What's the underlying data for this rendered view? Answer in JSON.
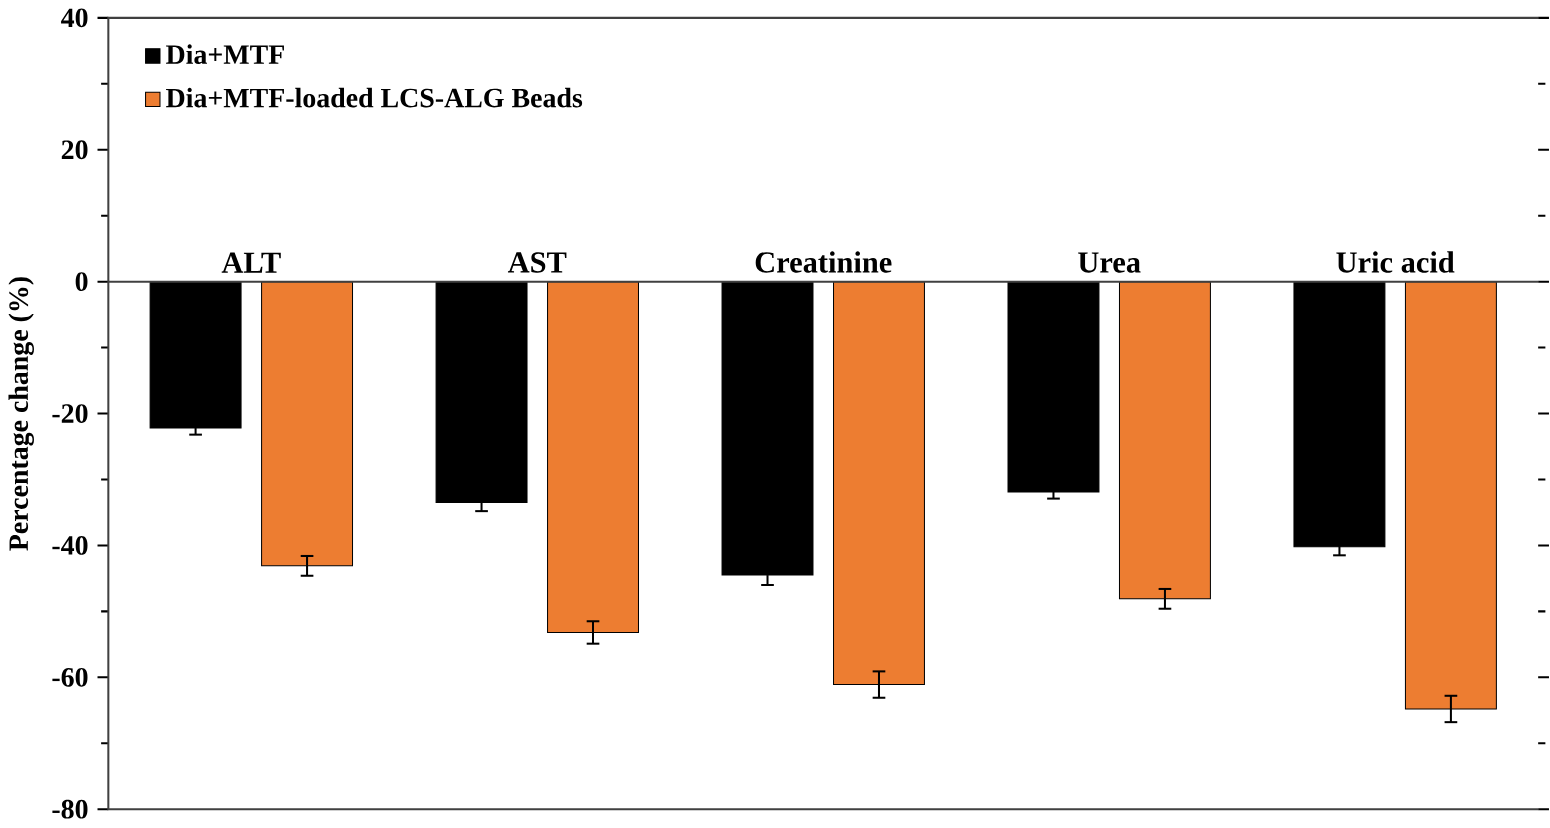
{
  "chart_data": {
    "type": "bar",
    "ylabel": "Percentage change (%)",
    "categories": [
      "ALT",
      "AST",
      "Creatinine",
      "Urea",
      "Uric acid"
    ],
    "series": [
      {
        "name": "Dia+MTF",
        "color": "#000000",
        "values": [
          -22.2,
          -33.5,
          -44.5,
          -31.9,
          -40.2
        ],
        "errors": [
          1,
          1.3,
          1.5,
          1,
          1.3
        ]
      },
      {
        "name": "Dia+MTF-loaded LCS-ALG Beads",
        "color": "#ed7d31",
        "values": [
          -43.1,
          -53.2,
          -61.1,
          -48.1,
          -64.8
        ],
        "errors": [
          1.5,
          1.7,
          2,
          1.5,
          2
        ]
      }
    ],
    "ylim": [
      -80,
      40
    ],
    "yticks": [
      -80,
      -60,
      -40,
      -20,
      0,
      20,
      40
    ],
    "grid": false,
    "legend": "top left"
  }
}
